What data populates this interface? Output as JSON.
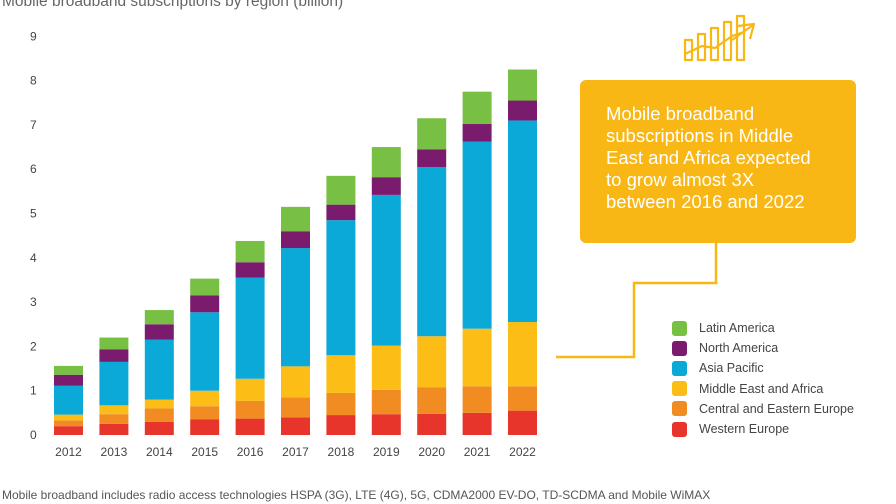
{
  "title": "Mobile broadband subscriptions by region (billion)",
  "callout": {
    "lines": [
      "Mobile broadband",
      "subscriptions in Middle",
      "East and Africa expected",
      "to grow almost 3X",
      "between 2016 and 2022"
    ]
  },
  "footnote": "Mobile broadband includes radio access technologies HSPA (3G), LTE (4G), 5G, CDMA2000 EV-DO, TD-SCDMA and Mobile WiMAX",
  "icon": "rising-chart-icon",
  "chart_data": {
    "type": "bar",
    "stacked": true,
    "title": "Mobile broadband subscriptions by region (billion)",
    "xlabel": "",
    "ylabel": "",
    "ylim": [
      0,
      9
    ],
    "yticks": [
      0,
      1,
      2,
      3,
      4,
      5,
      6,
      7,
      8,
      9
    ],
    "grid": false,
    "legend_position": "right",
    "categories": [
      "2012",
      "2013",
      "2014",
      "2015",
      "2016",
      "2017",
      "2018",
      "2019",
      "2020",
      "2021",
      "2022"
    ],
    "series": [
      {
        "name": "Western Europe",
        "color": "#e8352b",
        "values": [
          0.2,
          0.25,
          0.3,
          0.35,
          0.37,
          0.4,
          0.45,
          0.47,
          0.48,
          0.5,
          0.55
        ]
      },
      {
        "name": "Central and Eastern Europe",
        "color": "#f18c22",
        "values": [
          0.13,
          0.22,
          0.3,
          0.3,
          0.4,
          0.45,
          0.5,
          0.55,
          0.6,
          0.6,
          0.55
        ]
      },
      {
        "name": "Middle East and Africa",
        "color": "#fbbd16",
        "values": [
          0.13,
          0.2,
          0.2,
          0.35,
          0.5,
          0.7,
          0.85,
          1.0,
          1.15,
          1.3,
          1.45
        ]
      },
      {
        "name": "Asia Pacific",
        "color": "#0ba9d8",
        "values": [
          0.65,
          0.98,
          1.35,
          1.77,
          2.28,
          2.67,
          3.05,
          3.4,
          3.82,
          4.22,
          4.55
        ]
      },
      {
        "name": "North America",
        "color": "#7a1b6e",
        "values": [
          0.25,
          0.28,
          0.35,
          0.38,
          0.35,
          0.38,
          0.35,
          0.4,
          0.4,
          0.4,
          0.45
        ]
      },
      {
        "name": "Latin America",
        "color": "#77c043",
        "values": [
          0.2,
          0.27,
          0.32,
          0.38,
          0.48,
          0.55,
          0.65,
          0.68,
          0.7,
          0.73,
          0.7
        ]
      }
    ]
  }
}
